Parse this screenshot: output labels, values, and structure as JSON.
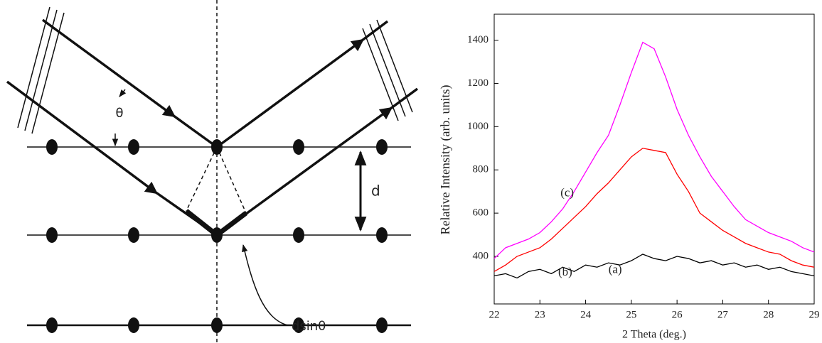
{
  "diagram": {
    "angle_label": "θ",
    "spacing_label": "d",
    "path_label": "dsinθ"
  },
  "chart_data": {
    "type": "line",
    "x_label": "2 Theta (deg.)",
    "y_label": "Relative Intensity (arb. units)",
    "x": [
      22,
      22.25,
      22.5,
      22.75,
      23,
      23.25,
      23.5,
      23.75,
      24,
      24.25,
      24.5,
      24.75,
      25,
      25.25,
      25.5,
      25.75,
      26,
      26.25,
      26.5,
      26.75,
      27,
      27.25,
      27.5,
      27.75,
      28,
      28.25,
      28.5,
      28.75,
      29
    ],
    "series": [
      {
        "name": "(a)",
        "color": "#000000",
        "values": [
          310,
          320,
          300,
          330,
          340,
          320,
          350,
          330,
          360,
          350,
          370,
          360,
          380,
          410,
          390,
          380,
          400,
          390,
          370,
          380,
          360,
          370,
          350,
          360,
          340,
          350,
          330,
          320,
          310
        ]
      },
      {
        "name": "(b)",
        "color": "#ff0000",
        "values": [
          330,
          360,
          400,
          420,
          440,
          480,
          530,
          580,
          630,
          690,
          740,
          800,
          860,
          900,
          890,
          880,
          780,
          700,
          600,
          560,
          520,
          490,
          460,
          440,
          420,
          410,
          380,
          360,
          350
        ]
      },
      {
        "name": "(c)",
        "color": "#ff00ff",
        "values": [
          390,
          440,
          460,
          480,
          510,
          560,
          620,
          700,
          790,
          880,
          960,
          1100,
          1250,
          1390,
          1360,
          1230,
          1080,
          960,
          860,
          770,
          700,
          630,
          570,
          540,
          510,
          490,
          470,
          440,
          420
        ]
      }
    ],
    "xlim": [
      22,
      29
    ],
    "xticks": [
      22,
      23,
      24,
      25,
      26,
      27,
      28,
      29
    ],
    "ylim": [
      180,
      1520
    ],
    "yticks": [
      400,
      600,
      800,
      1000,
      1200,
      1400
    ]
  }
}
